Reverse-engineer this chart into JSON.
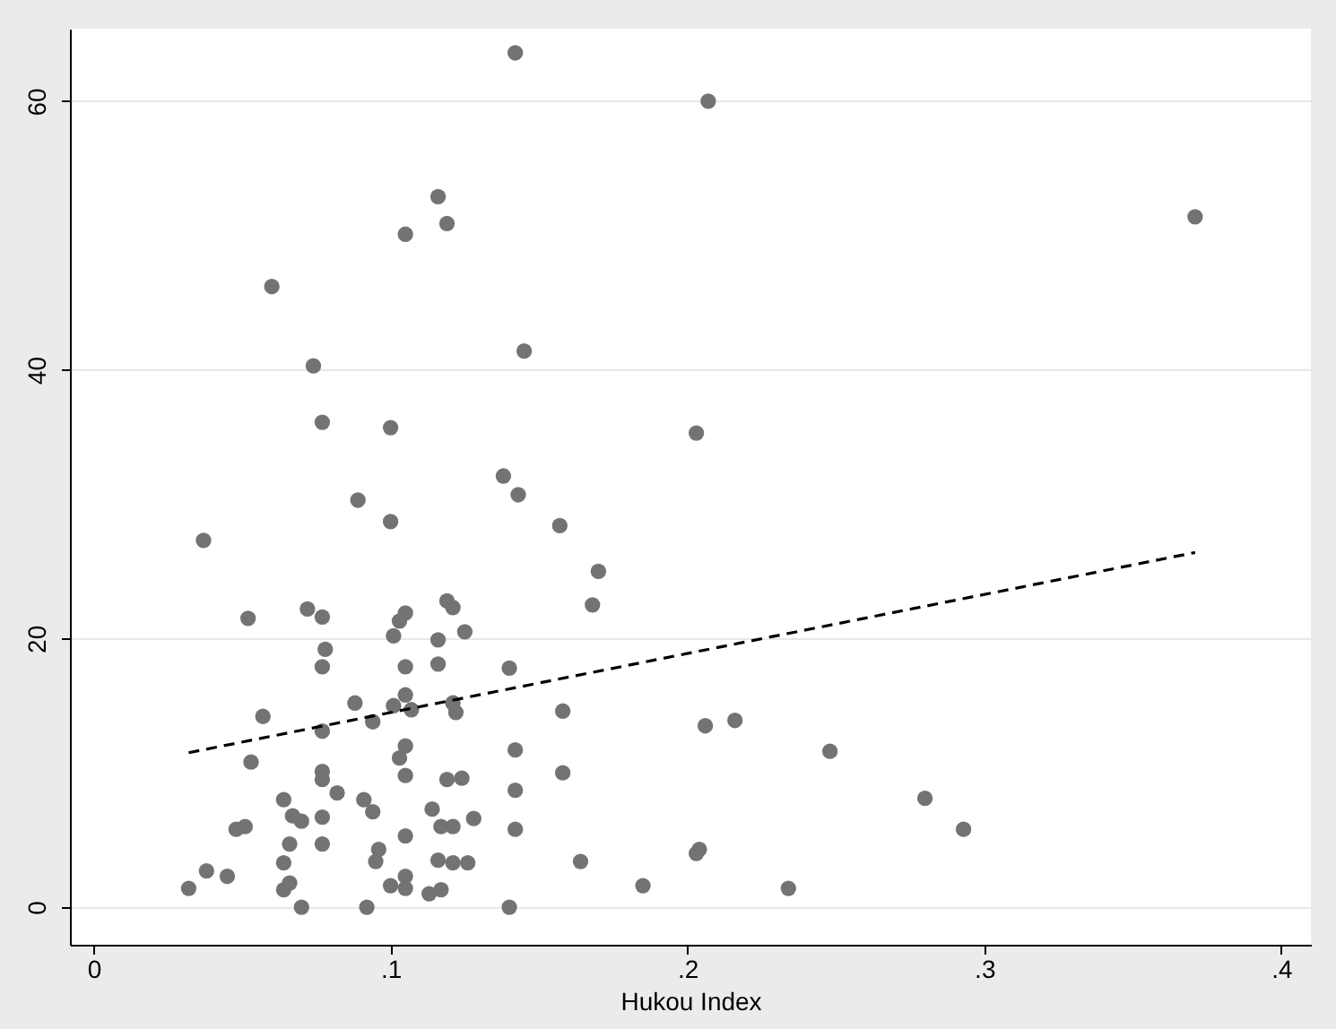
{
  "chart_data": {
    "type": "scatter",
    "xlabel": "Hukou Index",
    "xlim": [
      -0.008,
      0.41
    ],
    "ylim": [
      -2.8,
      65.4
    ],
    "xticks": [
      0,
      {
        "value": 0.1,
        "label": ".1"
      },
      {
        "value": 0.2,
        "label": ".2"
      },
      {
        "value": 0.3,
        "label": ".3"
      },
      {
        "value": 0.4,
        "label": ".4"
      }
    ],
    "yticks": [
      0,
      20,
      40,
      60
    ],
    "grid": "y",
    "series": [
      {
        "color": "#737373",
        "marker": "circle",
        "x": [
          0.142,
          0.207,
          0.371,
          0.116,
          0.119,
          0.105,
          0.06,
          0.145,
          0.074,
          0.077,
          0.1,
          0.203,
          0.138,
          0.143,
          0.089,
          0.1,
          0.157,
          0.037,
          0.17,
          0.168,
          0.052,
          0.072,
          0.077,
          0.078,
          0.077,
          0.088,
          0.057,
          0.077,
          0.094,
          0.053,
          0.077,
          0.077,
          0.082,
          0.064,
          0.067,
          0.07,
          0.077,
          0.091,
          0.094,
          0.048,
          0.051,
          0.066,
          0.077,
          0.064,
          0.038,
          0.045,
          0.032,
          0.064,
          0.066,
          0.07,
          0.092,
          0.096,
          0.095,
          0.105,
          0.1,
          0.105,
          0.105,
          0.114,
          0.117,
          0.116,
          0.113,
          0.103,
          0.105,
          0.101,
          0.116,
          0.105,
          0.116,
          0.105,
          0.101,
          0.107,
          0.105,
          0.103,
          0.105,
          0.119,
          0.119,
          0.121,
          0.125,
          0.14,
          0.158,
          0.121,
          0.122,
          0.142,
          0.124,
          0.158,
          0.142,
          0.128,
          0.121,
          0.142,
          0.121,
          0.126,
          0.164,
          0.117,
          0.14,
          0.185,
          0.204,
          0.203,
          0.206,
          0.216,
          0.248,
          0.28,
          0.293,
          0.234
        ],
        "values": [
          63.6,
          60.0,
          51.4,
          52.9,
          50.9,
          50.1,
          46.2,
          41.4,
          40.3,
          36.1,
          35.7,
          35.3,
          32.1,
          30.7,
          30.3,
          28.7,
          28.4,
          27.3,
          25.0,
          22.5,
          21.5,
          22.2,
          21.6,
          19.2,
          17.9,
          15.2,
          14.2,
          13.1,
          13.8,
          10.8,
          10.1,
          9.5,
          8.5,
          8.0,
          6.8,
          6.4,
          6.7,
          8.0,
          7.1,
          5.8,
          6.0,
          4.7,
          4.7,
          3.3,
          2.7,
          2.3,
          1.4,
          1.3,
          1.8,
          0.0,
          0.0,
          4.3,
          3.4,
          5.3,
          1.6,
          2.3,
          1.4,
          7.3,
          6.0,
          3.5,
          1.0,
          21.3,
          21.9,
          20.2,
          19.9,
          17.9,
          18.1,
          15.8,
          15.0,
          14.7,
          12.0,
          11.1,
          9.8,
          9.5,
          22.8,
          22.3,
          20.5,
          17.8,
          14.6,
          15.2,
          14.5,
          11.7,
          9.6,
          10.0,
          8.7,
          6.6,
          6.0,
          5.8,
          3.3,
          3.3,
          3.4,
          1.3,
          0.0,
          1.6,
          4.3,
          4.0,
          13.5,
          13.9,
          11.6,
          8.1,
          5.8,
          1.4
        ]
      },
      {
        "type": "line",
        "color": "#000000",
        "line_style": "dashed",
        "marker": "none",
        "x": [
          0.032,
          0.371
        ],
        "values": [
          11.5,
          26.4
        ]
      }
    ]
  }
}
